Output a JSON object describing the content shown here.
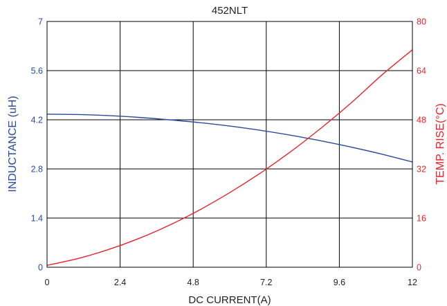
{
  "chart_data": {
    "type": "line",
    "title": "452NLT",
    "xlabel": "DC CURRENT(A)",
    "ylabel": "INDUCTANCE (uH)",
    "y2label": "TEMP. RISE(°C)",
    "xlim": [
      0,
      12
    ],
    "ylim": [
      0,
      7
    ],
    "y2lim": [
      0,
      80
    ],
    "x_ticks": [
      "0",
      "2.4",
      "4.8",
      "7.2",
      "9.6",
      "12"
    ],
    "y_ticks": [
      "0",
      "1.4",
      "2.8",
      "4.2",
      "5.6",
      "7"
    ],
    "y2_ticks": [
      "0",
      "16",
      "32",
      "48",
      "64",
      "80"
    ],
    "grid": true,
    "colors": {
      "inductance": "#2b4a9b",
      "temperature": "#e8232a",
      "grid": "#000000",
      "frame": "#000000"
    },
    "series": [
      {
        "axis": "left",
        "x": [
          0,
          1,
          2,
          3,
          4,
          5,
          6,
          7,
          8,
          9,
          10,
          11,
          12
        ],
        "values": [
          4.36,
          4.35,
          4.32,
          4.27,
          4.2,
          4.12,
          4.02,
          3.9,
          3.76,
          3.6,
          3.42,
          3.22,
          3.0
        ]
      },
      {
        "axis": "right",
        "x": [
          0,
          1,
          2,
          3,
          4,
          5,
          6,
          7,
          8,
          9,
          10,
          11,
          12
        ],
        "values": [
          0.6,
          2.8,
          5.7,
          9.3,
          13.6,
          18.6,
          24.3,
          30.6,
          37.6,
          45.3,
          53.6,
          62.6,
          70.8
        ]
      }
    ]
  }
}
